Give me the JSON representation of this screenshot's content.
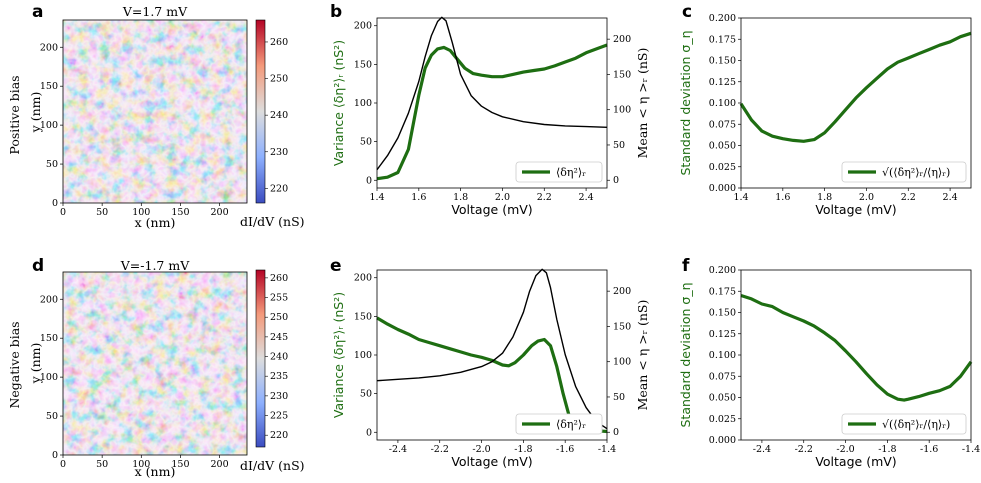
{
  "colors": {
    "green": "#1e6e12",
    "black": "#000000",
    "map_low": "#3b4cc0",
    "map_mid": "#dddddd",
    "map_high": "#b40426"
  },
  "row_labels": [
    "Positive bias",
    "Negative bias"
  ],
  "chart_data": [
    {
      "panel": "a",
      "type": "heatmap",
      "title": "V=1.7 mV",
      "xlabel": "x (nm)",
      "ylabel": "y (nm)",
      "xlim": [
        0,
        235
      ],
      "ylim": [
        0,
        235
      ],
      "xticks": [
        "0",
        "50",
        "100",
        "150",
        "200"
      ],
      "yticks": [
        "0",
        "50",
        "100",
        "150",
        "200"
      ],
      "colorbar_label": "dI/dV (nS)",
      "colorbar_range": [
        216,
        266
      ],
      "colorbar_ticks": [
        "220",
        "230",
        "240",
        "250",
        "260"
      ]
    },
    {
      "panel": "b",
      "type": "line",
      "xlabel": "Voltage (mV)",
      "ylabel": "Variance ⟨δη²⟩ᵣ (nS²)",
      "y2label": "Mean < η >ᵣ (nS)",
      "xlim": [
        1.4,
        2.5
      ],
      "ylim": [
        -10,
        210
      ],
      "y2lim": [
        -11,
        230
      ],
      "xticks": [
        "1.4",
        "1.6",
        "1.8",
        "2.0",
        "2.2",
        "2.4"
      ],
      "yticks": [
        "0",
        "50",
        "100",
        "150",
        "200"
      ],
      "y2ticks": [
        "0",
        "50",
        "100",
        "150",
        "200"
      ],
      "legend": "⟨δη²⟩ᵣ",
      "legend_loc": "lower-right",
      "series": [
        {
          "axis": "left",
          "color": "green",
          "x": [
            1.4,
            1.45,
            1.5,
            1.55,
            1.6,
            1.63,
            1.66,
            1.69,
            1.72,
            1.75,
            1.78,
            1.82,
            1.86,
            1.9,
            1.95,
            2.0,
            2.05,
            2.1,
            2.15,
            2.2,
            2.25,
            2.3,
            2.35,
            2.4,
            2.45,
            2.5
          ],
          "y": [
            2,
            4,
            10,
            40,
            110,
            145,
            162,
            170,
            172,
            168,
            158,
            145,
            138,
            136,
            134,
            134,
            137,
            140,
            142,
            144,
            148,
            153,
            158,
            165,
            170,
            175
          ]
        },
        {
          "axis": "right",
          "color": "black",
          "x": [
            1.4,
            1.45,
            1.5,
            1.55,
            1.6,
            1.63,
            1.66,
            1.69,
            1.71,
            1.73,
            1.76,
            1.8,
            1.85,
            1.9,
            1.95,
            2.0,
            2.1,
            2.2,
            2.3,
            2.4,
            2.5
          ],
          "y": [
            15,
            35,
            60,
            95,
            140,
            175,
            205,
            225,
            231,
            226,
            195,
            150,
            120,
            105,
            96,
            90,
            83,
            79,
            77,
            76,
            75
          ]
        }
      ]
    },
    {
      "panel": "c",
      "type": "line",
      "xlabel": "Voltage (mV)",
      "ylabel": "Standard deviation σ_η",
      "xlim": [
        1.4,
        2.5
      ],
      "ylim": [
        0.0,
        0.2
      ],
      "xticks": [
        "1.4",
        "1.6",
        "1.8",
        "2.0",
        "2.2",
        "2.4"
      ],
      "yticks": [
        "0.000",
        "0.025",
        "0.050",
        "0.075",
        "0.100",
        "0.125",
        "0.150",
        "0.175",
        "0.200"
      ],
      "legend": "√(⟨δη²⟩ᵣ/⟨η⟩ᵣ)",
      "legend_loc": "lower-right",
      "series": [
        {
          "color": "green",
          "x": [
            1.4,
            1.45,
            1.5,
            1.55,
            1.6,
            1.65,
            1.7,
            1.75,
            1.8,
            1.85,
            1.9,
            1.95,
            2.0,
            2.05,
            2.1,
            2.15,
            2.2,
            2.25,
            2.3,
            2.35,
            2.4,
            2.45,
            2.5
          ],
          "y": [
            0.099,
            0.08,
            0.067,
            0.061,
            0.058,
            0.056,
            0.055,
            0.057,
            0.065,
            0.078,
            0.092,
            0.106,
            0.118,
            0.129,
            0.14,
            0.148,
            0.153,
            0.158,
            0.163,
            0.168,
            0.172,
            0.178,
            0.182
          ]
        }
      ]
    },
    {
      "panel": "d",
      "type": "heatmap",
      "title": "V=-1.7 mV",
      "xlabel": "x (nm)",
      "ylabel": "y (nm)",
      "xlim": [
        0,
        235
      ],
      "ylim": [
        0,
        235
      ],
      "xticks": [
        "0",
        "50",
        "100",
        "150",
        "200"
      ],
      "yticks": [
        "0",
        "50",
        "100",
        "150",
        "200"
      ],
      "colorbar_label": "dI/dV (nS)",
      "colorbar_range": [
        217,
        262
      ],
      "colorbar_ticks": [
        "220",
        "225",
        "230",
        "235",
        "240",
        "245",
        "250",
        "255",
        "260"
      ]
    },
    {
      "panel": "e",
      "type": "line",
      "xlabel": "Voltage (mV)",
      "ylabel": "Variance ⟨δη²⟩ᵣ (nS²)",
      "y2label": "Mean < η >ᵣ (nS)",
      "xlim": [
        -2.5,
        -1.4
      ],
      "ylim": [
        -10,
        210
      ],
      "y2lim": [
        -11,
        230
      ],
      "xticks": [
        "-2.4",
        "-2.2",
        "-2.0",
        "-1.8",
        "-1.6",
        "-1.4"
      ],
      "yticks": [
        "0",
        "50",
        "100",
        "150",
        "200"
      ],
      "y2ticks": [
        "0",
        "50",
        "100",
        "150",
        "200"
      ],
      "legend": "⟨δη²⟩ᵣ",
      "legend_loc": "lower-right",
      "series": [
        {
          "axis": "left",
          "color": "green",
          "x": [
            -2.5,
            -2.45,
            -2.4,
            -2.35,
            -2.3,
            -2.25,
            -2.2,
            -2.15,
            -2.1,
            -2.05,
            -2.0,
            -1.95,
            -1.9,
            -1.87,
            -1.84,
            -1.8,
            -1.76,
            -1.73,
            -1.7,
            -1.67,
            -1.64,
            -1.61,
            -1.58,
            -1.55,
            -1.5,
            -1.45,
            -1.4
          ],
          "y": [
            148,
            140,
            133,
            127,
            120,
            116,
            112,
            108,
            104,
            100,
            97,
            93,
            87,
            86,
            90,
            100,
            112,
            118,
            120,
            112,
            85,
            50,
            20,
            8,
            4,
            2,
            1
          ]
        },
        {
          "axis": "right",
          "color": "black",
          "x": [
            -2.5,
            -2.4,
            -2.3,
            -2.2,
            -2.1,
            -2.0,
            -1.95,
            -1.9,
            -1.85,
            -1.8,
            -1.77,
            -1.74,
            -1.71,
            -1.69,
            -1.67,
            -1.64,
            -1.6,
            -1.55,
            -1.5,
            -1.45,
            -1.4
          ],
          "y": [
            73,
            75,
            77,
            80,
            85,
            93,
            100,
            112,
            135,
            170,
            200,
            222,
            231,
            226,
            205,
            160,
            110,
            65,
            35,
            15,
            5
          ]
        }
      ]
    },
    {
      "panel": "f",
      "type": "line",
      "xlabel": "Voltage (mV)",
      "ylabel": "Standard deviation σ_η",
      "xlim": [
        -2.5,
        -1.4
      ],
      "ylim": [
        0.0,
        0.2
      ],
      "xticks": [
        "-2.4",
        "-2.2",
        "-2.0",
        "-1.8",
        "-1.6",
        "-1.4"
      ],
      "yticks": [
        "0.000",
        "0.025",
        "0.050",
        "0.075",
        "0.100",
        "0.125",
        "0.150",
        "0.175",
        "0.200"
      ],
      "legend": "√(⟨δη²⟩ᵣ/⟨η⟩ᵣ)",
      "legend_loc": "lower-right",
      "series": [
        {
          "color": "green",
          "x": [
            -2.5,
            -2.45,
            -2.4,
            -2.35,
            -2.3,
            -2.25,
            -2.2,
            -2.15,
            -2.1,
            -2.05,
            -2.0,
            -1.95,
            -1.9,
            -1.85,
            -1.8,
            -1.75,
            -1.72,
            -1.7,
            -1.65,
            -1.6,
            -1.55,
            -1.5,
            -1.45,
            -1.4
          ],
          "y": [
            0.17,
            0.166,
            0.16,
            0.157,
            0.15,
            0.145,
            0.14,
            0.134,
            0.126,
            0.117,
            0.105,
            0.092,
            0.078,
            0.065,
            0.054,
            0.048,
            0.047,
            0.048,
            0.051,
            0.055,
            0.058,
            0.063,
            0.075,
            0.092
          ]
        }
      ]
    }
  ]
}
